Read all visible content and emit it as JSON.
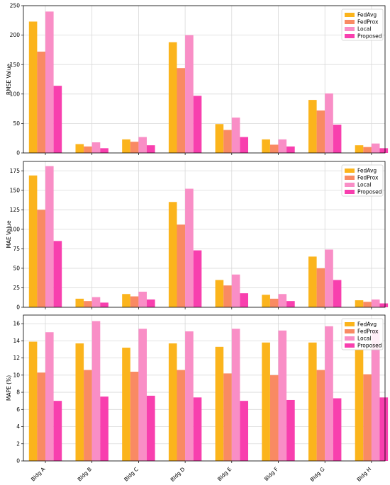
{
  "chart_data": [
    {
      "type": "bar",
      "ylabel": "RMSE Value",
      "ylim": [
        0,
        250
      ],
      "yticks": [
        0,
        50,
        100,
        150,
        200,
        250
      ],
      "grid": true,
      "legend_position": "top-right",
      "categories": [
        "Bldg A",
        "Bldg B",
        "Bldg C",
        "Bldg D",
        "Bldg E",
        "Bldg F",
        "Bldg G",
        "Bldg H"
      ],
      "series": [
        {
          "name": "FedAvg",
          "color": "#fbb41c",
          "values": [
            223,
            15,
            23,
            188,
            49,
            23,
            90,
            13
          ]
        },
        {
          "name": "FedProx",
          "color": "#f98a63",
          "values": [
            172,
            11,
            19,
            144,
            39,
            14,
            72,
            10
          ]
        },
        {
          "name": "Local",
          "color": "#f98ec6",
          "values": [
            240,
            18,
            27,
            200,
            60,
            23,
            101,
            16
          ]
        },
        {
          "name": "Proposed",
          "color": "#f83fae",
          "values": [
            114,
            8,
            13,
            97,
            27,
            11,
            48,
            8
          ]
        }
      ]
    },
    {
      "type": "bar",
      "ylabel": "MAE Value",
      "ylim": [
        0,
        187
      ],
      "yticks": [
        0,
        25,
        50,
        75,
        100,
        125,
        150,
        175
      ],
      "grid": true,
      "legend_position": "top-right",
      "categories": [
        "Bldg A",
        "Bldg B",
        "Bldg C",
        "Bldg D",
        "Bldg E",
        "Bldg F",
        "Bldg G",
        "Bldg H"
      ],
      "series": [
        {
          "name": "FedAvg",
          "color": "#fbb41c",
          "values": [
            169,
            11,
            17,
            135,
            35,
            16,
            65,
            9
          ]
        },
        {
          "name": "FedProx",
          "color": "#f98a63",
          "values": [
            125,
            8,
            14,
            106,
            28,
            11,
            50,
            7
          ]
        },
        {
          "name": "Local",
          "color": "#f98ec6",
          "values": [
            181,
            13,
            20,
            152,
            42,
            17,
            74,
            10
          ]
        },
        {
          "name": "Proposed",
          "color": "#f83fae",
          "values": [
            85,
            6,
            10,
            73,
            18,
            8,
            35,
            5
          ]
        }
      ]
    },
    {
      "type": "bar",
      "ylabel": "MAPE (%)",
      "ylim": [
        0,
        17
      ],
      "yticks": [
        0,
        2,
        4,
        6,
        8,
        10,
        12,
        14,
        16
      ],
      "grid": true,
      "legend_position": "top-right",
      "categories": [
        "Bldg A",
        "Bldg B",
        "Bldg C",
        "Bldg D",
        "Bldg E",
        "Bldg F",
        "Bldg G",
        "Bldg H"
      ],
      "series": [
        {
          "name": "FedAvg",
          "color": "#fbb41c",
          "values": [
            13.9,
            13.7,
            13.2,
            13.7,
            13.3,
            13.8,
            13.8,
            13.0
          ]
        },
        {
          "name": "FedProx",
          "color": "#f98a63",
          "values": [
            10.3,
            10.6,
            10.4,
            10.6,
            10.2,
            10.0,
            10.6,
            10.1
          ]
        },
        {
          "name": "Local",
          "color": "#f98ec6",
          "values": [
            15.0,
            16.3,
            15.4,
            15.1,
            15.4,
            15.2,
            15.7,
            15.3
          ]
        },
        {
          "name": "Proposed",
          "color": "#f83fae",
          "values": [
            7.0,
            7.5,
            7.6,
            7.4,
            7.0,
            7.1,
            7.3,
            7.4
          ]
        }
      ]
    }
  ]
}
